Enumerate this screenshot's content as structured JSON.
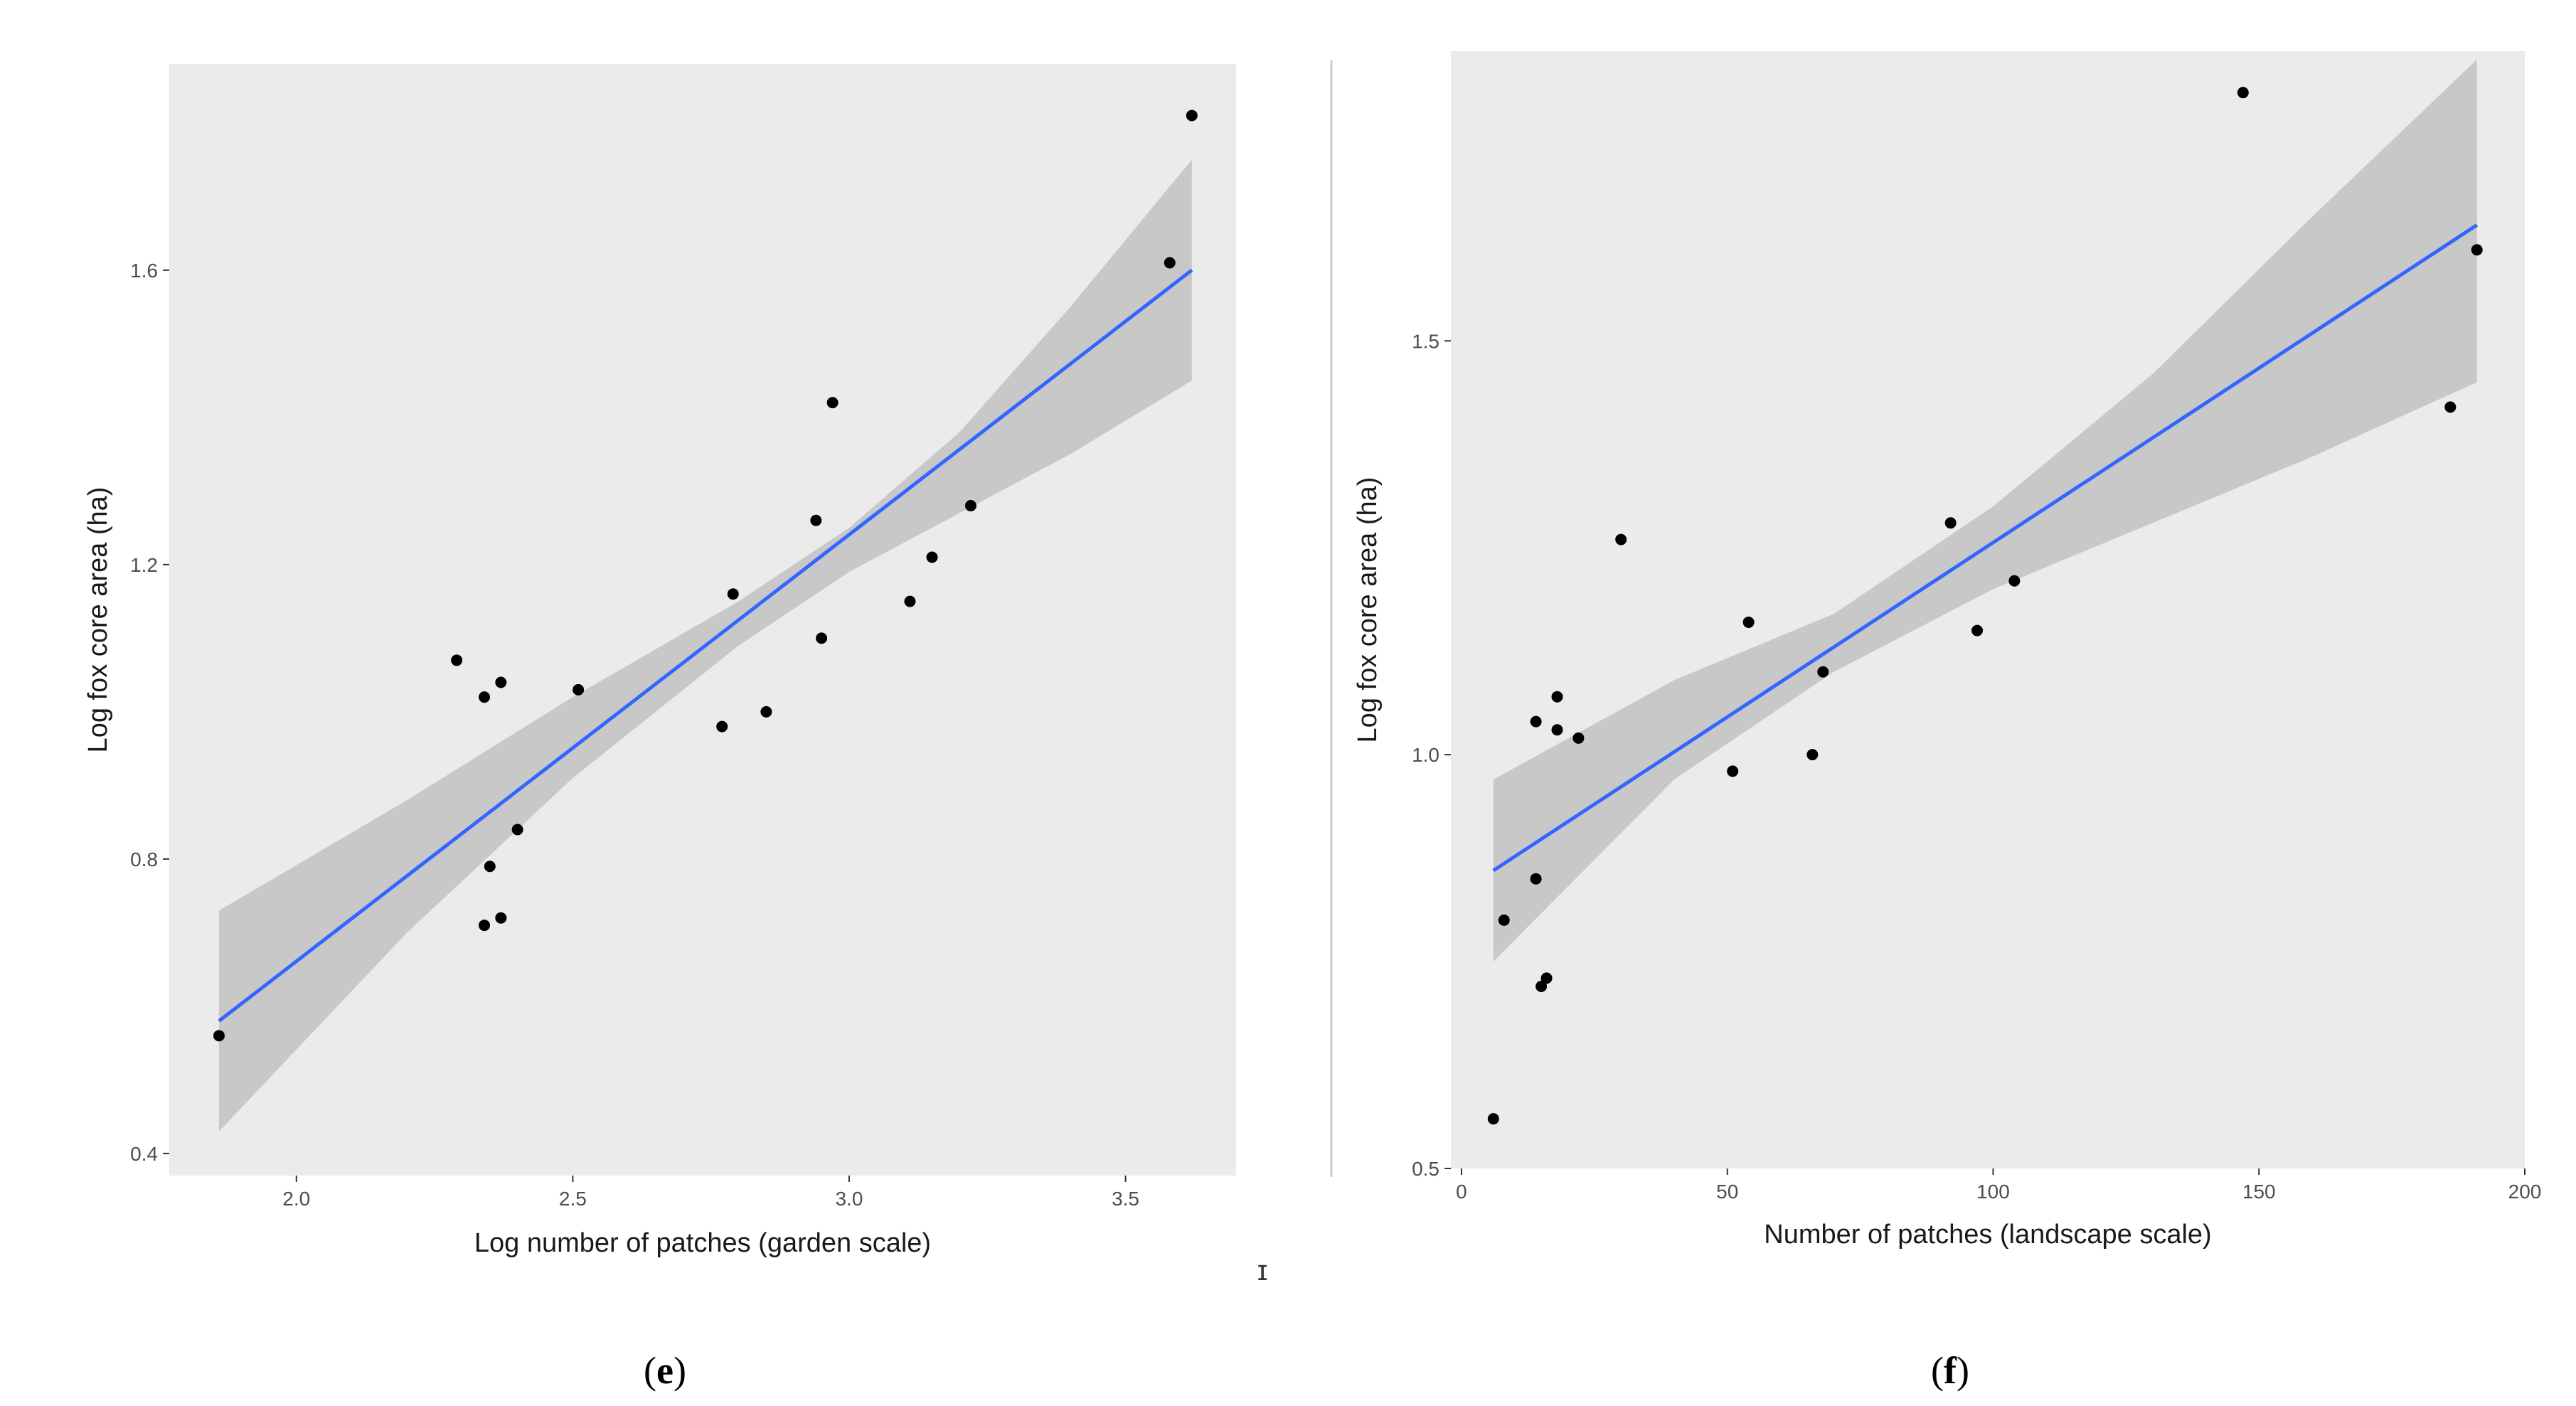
{
  "colors": {
    "panel_background": "#ebebeb",
    "confidence_band": "#c8c8c8",
    "fit_line": "#3366ff",
    "points": "#000000",
    "tick_mark": "#333333",
    "divider": "#cccccc"
  },
  "stray_glyph": "ɪ",
  "chart_data": [
    {
      "type": "scatter",
      "panel": "e",
      "caption": {
        "open": "(",
        "letter": "e",
        "close": ")"
      },
      "title": "",
      "xlabel": "Log number of patches (garden scale)",
      "ylabel": "Log fox core area (ha)",
      "xlim": [
        1.77,
        3.7
      ],
      "ylim": [
        0.37,
        1.88
      ],
      "xticks": [
        2.0,
        2.5,
        3.0,
        3.5
      ],
      "xtick_labels": [
        "2.0",
        "2.5",
        "3.0",
        "3.5"
      ],
      "yticks": [
        0.4,
        0.8,
        1.2,
        1.6
      ],
      "ytick_labels": [
        "0.4",
        "0.8",
        "1.2",
        "1.6"
      ],
      "points": [
        [
          1.86,
          0.56
        ],
        [
          2.29,
          1.07
        ],
        [
          2.34,
          1.02
        ],
        [
          2.37,
          1.04
        ],
        [
          2.34,
          0.71
        ],
        [
          2.35,
          0.79
        ],
        [
          2.37,
          0.72
        ],
        [
          2.4,
          0.84
        ],
        [
          2.51,
          1.03
        ],
        [
          2.77,
          0.98
        ],
        [
          2.79,
          1.16
        ],
        [
          2.85,
          1.0
        ],
        [
          2.94,
          1.26
        ],
        [
          2.95,
          1.1
        ],
        [
          2.97,
          1.42
        ],
        [
          3.11,
          1.15
        ],
        [
          3.15,
          1.21
        ],
        [
          3.22,
          1.28
        ],
        [
          3.58,
          1.61
        ],
        [
          3.62,
          1.81
        ]
      ],
      "fit": {
        "x": [
          1.86,
          3.62
        ],
        "y": [
          0.58,
          1.6
        ]
      },
      "band": {
        "x": [
          1.86,
          2.2,
          2.5,
          2.8,
          3.0,
          3.2,
          3.4,
          3.62
        ],
        "lower": [
          0.43,
          0.7,
          0.91,
          1.09,
          1.19,
          1.27,
          1.35,
          1.45
        ],
        "upper": [
          0.73,
          0.88,
          1.02,
          1.15,
          1.25,
          1.38,
          1.55,
          1.75
        ]
      }
    },
    {
      "type": "scatter",
      "panel": "f",
      "caption": {
        "open": "(",
        "letter": "f",
        "close": ")"
      },
      "title": "",
      "xlabel": "Number of patches (landscape scale)",
      "ylabel": "Log fox core area (ha)",
      "xlim": [
        -2,
        200
      ],
      "ylim": [
        0.5,
        1.85
      ],
      "xticks": [
        0,
        50,
        100,
        150,
        200
      ],
      "xtick_labels": [
        "0",
        "50",
        "100",
        "150",
        "200"
      ],
      "yticks": [
        0.5,
        1.0,
        1.5
      ],
      "ytick_labels": [
        "0.5",
        "1.0",
        "1.5"
      ],
      "points": [
        [
          6,
          0.56
        ],
        [
          8,
          0.8
        ],
        [
          14,
          0.85
        ],
        [
          15,
          0.72
        ],
        [
          16,
          0.73
        ],
        [
          14,
          1.04
        ],
        [
          18,
          1.03
        ],
        [
          18,
          1.07
        ],
        [
          22,
          1.02
        ],
        [
          30,
          1.26
        ],
        [
          51,
          0.98
        ],
        [
          54,
          1.16
        ],
        [
          66,
          1.0
        ],
        [
          68,
          1.1
        ],
        [
          92,
          1.28
        ],
        [
          97,
          1.15
        ],
        [
          104,
          1.21
        ],
        [
          147,
          1.8
        ],
        [
          186,
          1.42
        ],
        [
          191,
          1.61
        ]
      ],
      "fit": {
        "x": [
          6,
          191
        ],
        "y": [
          0.86,
          1.64
        ]
      },
      "band": {
        "x": [
          6,
          40,
          70,
          100,
          130,
          160,
          191
        ],
        "lower": [
          0.75,
          0.97,
          1.1,
          1.2,
          1.28,
          1.36,
          1.45
        ],
        "upper": [
          0.97,
          1.09,
          1.17,
          1.3,
          1.46,
          1.65,
          1.84
        ]
      }
    }
  ]
}
